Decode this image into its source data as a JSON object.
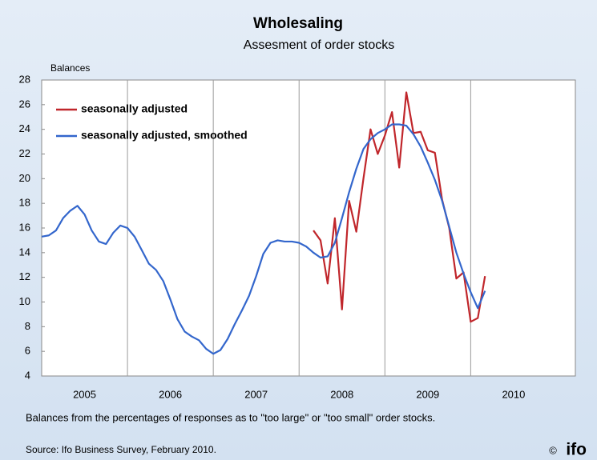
{
  "chart_data": {
    "type": "line",
    "title": "Wholesaling",
    "subtitle": "Assesment of order stocks",
    "y_label": "Balances",
    "note": "Balances from the percentages of responses as to \"too large\" or \"too small\" order stocks.",
    "source": "Source: Ifo Business Survey, February 2010.",
    "copyright": "©",
    "logo": "ifo",
    "legend": "upper left",
    "x": [
      2005.0,
      2005.083,
      2005.167,
      2005.25,
      2005.333,
      2005.417,
      2005.5,
      2005.583,
      2005.667,
      2005.75,
      2005.833,
      2005.917,
      2006.0,
      2006.083,
      2006.167,
      2006.25,
      2006.333,
      2006.417,
      2006.5,
      2006.583,
      2006.667,
      2006.75,
      2006.833,
      2006.917,
      2007.0,
      2007.083,
      2007.167,
      2007.25,
      2007.333,
      2007.417,
      2007.5,
      2007.583,
      2007.667,
      2007.75,
      2007.833,
      2007.917,
      2008.0,
      2008.083,
      2008.167,
      2008.25,
      2008.333,
      2008.417,
      2008.5,
      2008.583,
      2008.667,
      2008.75,
      2008.833,
      2008.917,
      2009.0,
      2009.083,
      2009.167,
      2009.25,
      2009.333,
      2009.417,
      2009.5,
      2009.583,
      2009.667,
      2009.75,
      2009.833,
      2009.917,
      2010.0,
      2010.083,
      2010.167
    ],
    "series": [
      {
        "name": "seasonally adjusted",
        "color": "#c0262b",
        "values": [
          null,
          null,
          null,
          null,
          null,
          null,
          null,
          null,
          null,
          null,
          null,
          null,
          null,
          null,
          null,
          null,
          null,
          null,
          null,
          null,
          null,
          null,
          null,
          null,
          null,
          null,
          null,
          null,
          null,
          null,
          null,
          null,
          null,
          null,
          null,
          null,
          null,
          null,
          15.8,
          15.0,
          11.5,
          16.8,
          9.4,
          18.2,
          15.7,
          20.0,
          24.0,
          22.0,
          23.5,
          25.4,
          20.9,
          27.0,
          23.7,
          23.8,
          22.3,
          22.1,
          18.3,
          16.0,
          11.9,
          12.4,
          8.4,
          8.7,
          12.1
        ]
      },
      {
        "name": "seasonally adjusted, smoothed",
        "color": "#3366cc",
        "values": [
          15.3,
          15.4,
          15.8,
          16.8,
          17.4,
          17.8,
          17.1,
          15.8,
          14.9,
          14.7,
          15.6,
          16.2,
          16.0,
          15.3,
          14.2,
          13.1,
          12.6,
          11.7,
          10.2,
          8.6,
          7.6,
          7.2,
          6.9,
          6.2,
          5.8,
          6.1,
          7.0,
          8.2,
          9.3,
          10.5,
          12.1,
          13.9,
          14.8,
          15.0,
          14.9,
          14.9,
          14.8,
          14.5,
          14.0,
          13.6,
          13.7,
          14.8,
          16.8,
          18.9,
          20.8,
          22.4,
          23.2,
          23.7,
          24.0,
          24.4,
          24.4,
          24.3,
          23.6,
          22.6,
          21.3,
          19.9,
          18.2,
          16.1,
          14.0,
          12.3,
          10.8,
          9.5,
          10.9
        ]
      }
    ],
    "xlim": [
      2005,
      2011.22
    ],
    "xticks": [
      {
        "value": 2005.5,
        "label": "2005"
      },
      {
        "value": 2006.5,
        "label": "2006"
      },
      {
        "value": 2007.5,
        "label": "2007"
      },
      {
        "value": 2008.5,
        "label": "2008"
      },
      {
        "value": 2009.5,
        "label": "2009"
      },
      {
        "value": 2010.5,
        "label": "2010"
      }
    ],
    "xgrid": [
      2006,
      2007,
      2008,
      2009,
      2010
    ],
    "ylim": [
      4,
      28
    ],
    "yticks": [
      4,
      6,
      8,
      10,
      12,
      14,
      16,
      18,
      20,
      22,
      24,
      26,
      28
    ]
  }
}
